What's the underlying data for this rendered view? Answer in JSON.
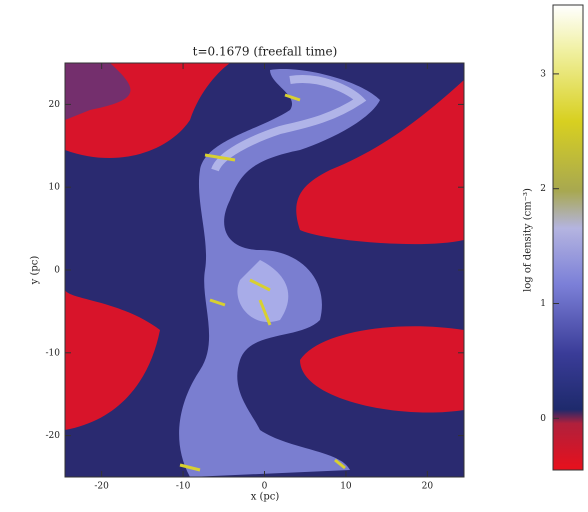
{
  "chart_data": {
    "type": "image",
    "title": "t=0.1679 (freefall time)",
    "x_label": "x (pc)",
    "y_label": "y (pc)",
    "xlim": [
      -24.5,
      24.5
    ],
    "xticks": [
      -20,
      -10,
      0,
      10,
      20
    ],
    "ylim": [
      -25,
      25
    ],
    "yticks": [
      -20,
      -10,
      0,
      10,
      20
    ],
    "colorbar": {
      "label": "log of density (cm⁻³)",
      "lim": [
        -0.45,
        3.6
      ],
      "ticks": [
        0,
        1,
        2,
        3
      ]
    }
  }
}
